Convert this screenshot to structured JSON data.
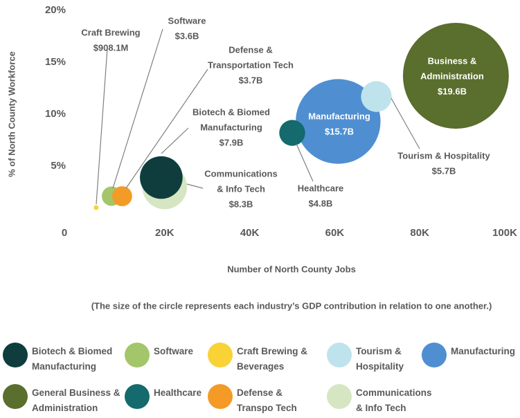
{
  "chart_data": {
    "type": "bubble",
    "xlabel": "Number of North County Jobs",
    "ylabel": "% of North County Workforce",
    "note": "(The size of the circle represents each industry’s GDP contribution in relation to one another.)",
    "xlim": [
      0,
      100000
    ],
    "xticks": [
      0,
      {
        "value": 20000,
        "label": "20K"
      },
      {
        "value": 40000,
        "label": "40K"
      },
      {
        "value": 60000,
        "label": "60K"
      },
      {
        "value": 80000,
        "label": "80K"
      },
      {
        "value": 100000,
        "label": "100K"
      }
    ],
    "ylim": [
      0,
      20
    ],
    "yticks": [
      {
        "value": 5,
        "label": "5%"
      },
      {
        "value": 10,
        "label": "10%"
      },
      {
        "value": 15,
        "label": "15%"
      },
      {
        "value": 20,
        "label": "20%"
      }
    ],
    "grid": false,
    "legend": "bottom",
    "series": [
      {
        "name": "Biotech & Biomed Manufacturing",
        "label": [
          "Biotech & Biomed",
          "Manufacturing"
        ],
        "color": "#0f3d3e",
        "x": 19200,
        "y": 3.9,
        "size": 7.9,
        "value_label": "$7.9B"
      },
      {
        "name": "Software",
        "label": [
          "Software"
        ],
        "color": "#a3c66b",
        "x": 7500,
        "y": 2.1,
        "size": 3.6,
        "value_label": "$3.6B"
      },
      {
        "name": "Craft Brewing & Beverages",
        "label": [
          "Craft Brewing"
        ],
        "color": "#f9d236",
        "x": 3900,
        "y": 1.0,
        "size": 0.9081,
        "value_label": "$908.1M"
      },
      {
        "name": "Tourism & Hospitality",
        "label": [
          "Tourism & Hospitality"
        ],
        "color": "#bfe3ec",
        "x": 69800,
        "y": 11.7,
        "size": 5.7,
        "value_label": "$5.7B"
      },
      {
        "name": "Manufacturing",
        "label": [
          "Manufacturing"
        ],
        "color": "#4f8fd1",
        "x": 60800,
        "y": 9.3,
        "size": 15.7,
        "value_label": "$15.7B"
      },
      {
        "name": "General Business & Administration",
        "label": [
          "Business &",
          "Administration"
        ],
        "color": "#5a6e2d",
        "x": 88500,
        "y": 13.7,
        "size": 19.6,
        "value_label": "$19.6B"
      },
      {
        "name": "Healthcare",
        "label": [
          "Healthcare"
        ],
        "color": "#146a6c",
        "x": 50000,
        "y": 8.2,
        "size": 4.8,
        "value_label": "$4.8B"
      },
      {
        "name": "Defense & Transpo Tech",
        "label": [
          "Defense &",
          "Transportation Tech"
        ],
        "color": "#f39b26",
        "x": 10000,
        "y": 2.1,
        "size": 3.7,
        "value_label": "$3.7B"
      },
      {
        "name": "Communications & Info Tech",
        "label": [
          "Communications",
          "& Info Tech"
        ],
        "color": "#d6e6c3",
        "x": 20000,
        "y": 3.0,
        "size": 8.3,
        "value_label": "$8.3B"
      }
    ]
  }
}
